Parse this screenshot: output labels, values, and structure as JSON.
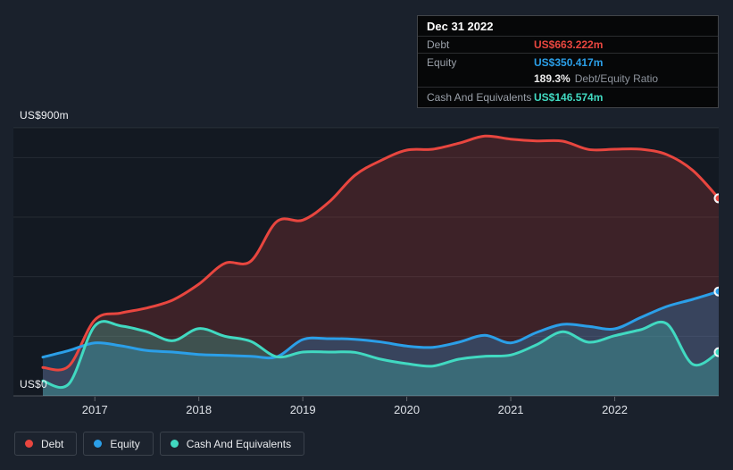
{
  "tooltip": {
    "date": "Dec 31 2022",
    "debt_label": "Debt",
    "debt_value": "US$663.222m",
    "equity_label": "Equity",
    "equity_value": "US$350.417m",
    "ratio_value": "189.3%",
    "ratio_label": "Debt/Equity Ratio",
    "cash_label": "Cash And Equivalents",
    "cash_value": "US$146.574m"
  },
  "y_axis": {
    "top_label": "US$900m",
    "bottom_label": "US$0"
  },
  "legend": {
    "items": [
      {
        "label": "Debt",
        "color": "#e8463f"
      },
      {
        "label": "Equity",
        "color": "#2b9fe8"
      },
      {
        "label": "Cash And Equivalents",
        "color": "#41d9c1"
      }
    ]
  },
  "colors": {
    "background": "#1a212c",
    "panel_shade": "rgba(3,6,12,0.30)",
    "gridline": "rgba(255,255,255,0.08)",
    "baseline": "rgba(255,255,255,0.25)",
    "tick": "rgba(255,255,255,0.30)",
    "x_label": "#dde1e7",
    "marker_ring": "#f3f6f8"
  },
  "chart_data": {
    "type": "area",
    "title": "Debt to Equity History (US$ millions)",
    "x_unit": "decimal_year_quarterly",
    "x": [
      2016.5,
      2016.75,
      2017,
      2017.25,
      2017.5,
      2017.75,
      2018,
      2018.25,
      2018.5,
      2018.75,
      2019,
      2019.25,
      2019.5,
      2019.75,
      2020,
      2020.25,
      2020.5,
      2020.75,
      2021,
      2021.25,
      2021.5,
      2021.75,
      2022,
      2022.25,
      2022.5,
      2022.75,
      2023
    ],
    "series": [
      {
        "name": "Debt",
        "color": "#e8463f",
        "fill_alpha": 0.2,
        "values": [
          95,
          100,
          255,
          278,
          295,
          322,
          375,
          445,
          452,
          585,
          590,
          650,
          740,
          790,
          825,
          828,
          848,
          872,
          862,
          856,
          855,
          827,
          828,
          828,
          810,
          757,
          663.222
        ]
      },
      {
        "name": "Equity",
        "color": "#2b9fe8",
        "fill_alpha": 0.28,
        "values": [
          130,
          152,
          178,
          168,
          152,
          147,
          139,
          136,
          133,
          131,
          189,
          192,
          190,
          181,
          167,
          163,
          180,
          203,
          178,
          213,
          240,
          233,
          225,
          263,
          300,
          324,
          350.417
        ]
      },
      {
        "name": "Cash And Equivalents",
        "color": "#41d9c1",
        "fill_alpha": 0.26,
        "values": [
          50,
          40,
          235,
          235,
          215,
          185,
          226,
          200,
          183,
          131,
          147,
          147,
          146,
          123,
          108,
          100,
          123,
          133,
          137,
          172,
          215,
          180,
          202,
          222,
          242,
          106,
          146.574
        ]
      }
    ],
    "ylim": [
      0,
      900
    ],
    "gridline_values": [
      900,
      800,
      600,
      400,
      200
    ],
    "x_ticks": [
      {
        "t": 2017,
        "label": "2017"
      },
      {
        "t": 2018,
        "label": "2018"
      },
      {
        "t": 2019,
        "label": "2019"
      },
      {
        "t": 2020,
        "label": "2020"
      },
      {
        "t": 2021,
        "label": "2021"
      },
      {
        "t": 2022,
        "label": "2022"
      }
    ],
    "grid": true,
    "legend_position": "bottom-left",
    "end_values": {
      "Debt": 663.222,
      "Equity": 350.417,
      "Cash And Equivalents": 146.574
    }
  }
}
